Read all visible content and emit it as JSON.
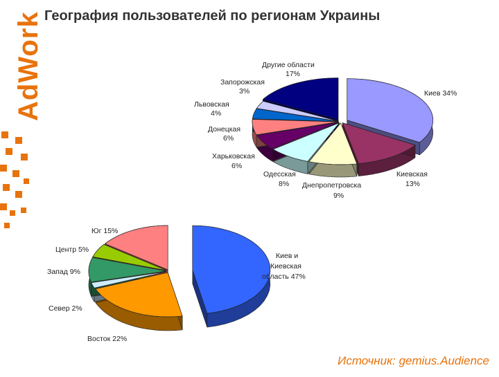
{
  "brand": {
    "logo_text": "AdWork",
    "accent": "#e8730c"
  },
  "title": "География пользователей по регионам Украины",
  "source": "Источник: gemius.Audience",
  "chart_data": [
    {
      "type": "pie",
      "slices": [
        {
          "name": "Киев",
          "label": "Киев 34%",
          "value": 34,
          "color": "#9999ff"
        },
        {
          "name": "Киевская",
          "label": "Киевская 13%",
          "value": 13,
          "color": "#993366"
        },
        {
          "name": "Днепропетровская",
          "label": "Днепропетровская 9%",
          "value": 9,
          "color": "#ffffcc"
        },
        {
          "name": "Одесская",
          "label": "Одесская 8%",
          "value": 8,
          "color": "#ccffff"
        },
        {
          "name": "Харьковская",
          "label": "Харьковская 6%",
          "value": 6,
          "color": "#660066"
        },
        {
          "name": "Донецкая",
          "label": "Донецкая 6%",
          "value": 6,
          "color": "#ff8080"
        },
        {
          "name": "Львовская",
          "label": "Львовская 4%",
          "value": 4,
          "color": "#0066cc"
        },
        {
          "name": "Запорожская",
          "label": "Запорожская 3%",
          "value": 3,
          "color": "#ccccff"
        },
        {
          "name": "Другие области",
          "label": "Другие области 17%",
          "value": 17,
          "color": "#000080"
        }
      ]
    },
    {
      "type": "pie",
      "slices": [
        {
          "name": "Киев и Киевская область",
          "label": "Киев и Киевская область 47%",
          "value": 47,
          "color": "#3366ff"
        },
        {
          "name": "Восток",
          "label": "Восток 22%",
          "value": 22,
          "color": "#ff9900"
        },
        {
          "name": "Север",
          "label": "Север 2%",
          "value": 2,
          "color": "#ccecff"
        },
        {
          "name": "Запад",
          "label": "Запад 9%",
          "value": 9,
          "color": "#339966"
        },
        {
          "name": "Центр",
          "label": "Центр 5%",
          "value": 5,
          "color": "#99cc00"
        },
        {
          "name": "Юг",
          "label": "Юг 15%",
          "value": 15,
          "color": "#ff8080"
        }
      ]
    }
  ]
}
